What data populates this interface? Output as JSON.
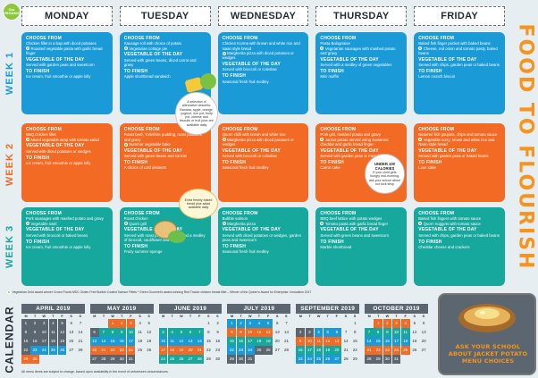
{
  "title": "FOOD TO FLOURISH",
  "badge": "Our ORGANIC",
  "days": [
    "MONDAY",
    "TUESDAY",
    "WEDNESDAY",
    "THURSDAY",
    "FRIDAY"
  ],
  "labels": {
    "choose": "CHOOSE FROM",
    "veg": "VEGETABLE OF THE DAY",
    "finish": "TO FINISH"
  },
  "weeks": [
    {
      "label": "WEEK 1",
      "cards": [
        {
          "choose": [
            {
              "t": "Chicken fillet in a bap with diced potatoes",
              "v": false
            },
            {
              "t": "Roasted vegetable pasta with garlic bread finger",
              "v": true
            }
          ],
          "veg": "Served with garden peas and sweetcorn",
          "finish": "Ice cream, fruit smoothie or apple lolly"
        },
        {
          "choose": [
            {
              "t": "Sausage roll with choice of potato",
              "v": false
            },
            {
              "t": "Vegetarian cottage pie",
              "v": true
            }
          ],
          "veg": "Served with green beans, diced carrot and gravy",
          "finish": "Apple shortbread sandwich"
        },
        {
          "choose": [
            {
              "t": "Chicken Korma with brown and white rice and Naan style bread",
              "v": false
            },
            {
              "t": "Margherita pizza with diced potatoes or wedges",
              "v": true
            }
          ],
          "veg": "Served with broccoli or coleslaw",
          "finish": "Seasonal fresh fruit medley"
        },
        {
          "choose": [
            {
              "t": "Pasta Bolognaise",
              "v": false
            },
            {
              "t": "Vegetarian sausages with mashed potato and gravy",
              "v": true
            }
          ],
          "veg": "Served with a medley of green vegetables",
          "finish": "Mini muffin"
        },
        {
          "choose": [
            {
              "t": "Baked fish finger pocket with baked beans",
              "v": false
            },
            {
              "t": "Cheese, red onion and tomato pasty, baked beans",
              "v": true
            }
          ],
          "veg": "Served with chips, garden peas or baked beans",
          "finish": "Lemon crunch biscuit"
        }
      ]
    },
    {
      "label": "WEEK 2",
      "cards": [
        {
          "choose": [
            {
              "t": "BBQ chicken fillet",
              "v": false
            },
            {
              "t": "Mixed vegetable wrap with tomato salad",
              "v": true
            }
          ],
          "veg": "Served with diced potatoes or wedges",
          "finish": "Ice cream, fruit smoothie or apple lolly"
        },
        {
          "choose": [
            {
              "t": "Roast beef, Yorkshire pudding, roast potatoes and gravy",
              "v": false
            },
            {
              "t": "Summer vegetable bake",
              "v": true
            }
          ],
          "veg": "Served with green beans and carrots",
          "finish": "A choice of cold desserts"
        },
        {
          "choose": [
            {
              "t": "Quorn chilli with brown and white rice",
              "v": false
            },
            {
              "t": "Margherita pizza with diced potatoes or wedges",
              "v": true
            }
          ],
          "veg": "Served with broccoli or coleslaw",
          "finish": "Seasonal fresh fruit medley"
        },
        {
          "choose": [
            {
              "t": "Pork grill, mashed potato and gravy",
              "v": false
            },
            {
              "t": "Jacket potato served using Somerset cheddar and garlic bread finger",
              "v": true
            }
          ],
          "veg": "Served with garden peas or mixed salad",
          "finish": "Carrot cake"
        },
        {
          "choose": [
            {
              "t": "Battered fish goujons, chips and tomato sauce",
              "v": false
            },
            {
              "t": "Vegetable curry, brown and white rice and Naan style bread",
              "v": true
            }
          ],
          "veg": "Served with garden peas or baked beans",
          "finish": "Love cake"
        }
      ]
    },
    {
      "label": "WEEK 3",
      "cards": [
        {
          "choose": [
            {
              "t": "Pork sausages with mashed potato and gravy",
              "v": false
            },
            {
              "t": "Vegetable swirl",
              "v": true
            }
          ],
          "veg": "Served with broccoli or baked beans",
          "finish": "Ice cream, fruit smoothie or apple lolly"
        },
        {
          "choose": [
            {
              "t": "Roast chicken",
              "v": false
            },
            {
              "t": "Quorn grill",
              "v": true
            }
          ],
          "veg": "Served with roast potatoes, gravy and a medley of broccoli, cauliflower and carrots",
          "finish": "Fruity summer sponge"
        },
        {
          "choose": [
            {
              "t": "Bubble salmon",
              "v": false
            },
            {
              "t": "Margherita pizza",
              "v": true
            }
          ],
          "veg": "Served with diced potatoes or wedges, garden peas and sweetcorn",
          "finish": "Seasonal fresh fruit medley"
        },
        {
          "choose": [
            {
              "t": "BBQ beef lattice with potato wedges",
              "v": false
            },
            {
              "t": "Tomato pasta with garlic bread finger",
              "v": true
            }
          ],
          "veg": "Served with green beans and sweetcorn",
          "finish": "Marble shortbread"
        },
        {
          "choose": [
            {
              "t": "Baked fish fingers with tomato sauce",
              "v": false
            },
            {
              "t": "Quorn nuggets with tomato sauce",
              "v": true
            }
          ],
          "veg": "Served with chips, garden peas or baked beans",
          "finish": "Cheddar cheese and crackers"
        }
      ]
    }
  ],
  "bubbles": {
    "fruit": "A selection of alternative desserts: Banana, apple, orange, yoghurt, rice pot, fruity pot, cheese and biscuits or fruit juice are available daily",
    "bread": "Extra freshly baked bread plus salad available daily",
    "under_title": "UNDER 100 CALORIES",
    "under_text": "If your child gets hungry mid-morning, ask your school about our tuck shop"
  },
  "legend": "Vegetarian     Gold award winner Crown Foods MSC Gluten Free Bubble Coated Salmon Fillets     * Green Gourmet's award-winning Red Tractor chicken breast fillet – Winner of the Queen's Award for Enterprise: Innovation 2017",
  "calendar_label": "CALENDAR",
  "weekday_letters": [
    "M",
    "T",
    "W",
    "T",
    "F",
    "S",
    "S"
  ],
  "months": [
    {
      "name": "APRIL 2019",
      "cells": [
        [
          "1",
          "hol"
        ],
        [
          "2",
          "hol"
        ],
        [
          "3",
          "hol"
        ],
        [
          "4",
          "hol"
        ],
        [
          "5",
          "hol"
        ],
        [
          "6",
          ""
        ],
        [
          "7",
          ""
        ],
        [
          "8",
          "hol"
        ],
        [
          "9",
          "hol"
        ],
        [
          "10",
          "hol"
        ],
        [
          "11",
          "hol"
        ],
        [
          "12",
          "hol"
        ],
        [
          "13",
          ""
        ],
        [
          "14",
          ""
        ],
        [
          "15",
          "hol"
        ],
        [
          "16",
          "hol"
        ],
        [
          "17",
          "hol"
        ],
        [
          "18",
          "hol"
        ],
        [
          "19",
          "hol"
        ],
        [
          "20",
          ""
        ],
        [
          "21",
          ""
        ],
        [
          "22",
          "hol"
        ],
        [
          "23",
          "w1"
        ],
        [
          "24",
          "w1"
        ],
        [
          "25",
          "w1"
        ],
        [
          "26",
          "w1"
        ],
        [
          "27",
          ""
        ],
        [
          "28",
          ""
        ],
        [
          "29",
          "w2"
        ],
        [
          "30",
          "w2"
        ],
        [
          "",
          ""
        ],
        [
          "",
          ""
        ],
        [
          "",
          ""
        ],
        [
          "",
          ""
        ],
        [
          "",
          ""
        ]
      ]
    },
    {
      "name": "MAY 2019",
      "cells": [
        [
          "",
          ""
        ],
        [
          "",
          ""
        ],
        [
          "1",
          "w2"
        ],
        [
          "2",
          "w2"
        ],
        [
          "3",
          "w2"
        ],
        [
          "4",
          ""
        ],
        [
          "5",
          ""
        ],
        [
          "6",
          "hol"
        ],
        [
          "7",
          "w3"
        ],
        [
          "8",
          "w3"
        ],
        [
          "9",
          "w3"
        ],
        [
          "10",
          "w3"
        ],
        [
          "11",
          ""
        ],
        [
          "12",
          ""
        ],
        [
          "13",
          "w1"
        ],
        [
          "14",
          "w1"
        ],
        [
          "15",
          "w1"
        ],
        [
          "16",
          "w1"
        ],
        [
          "17",
          "w1"
        ],
        [
          "18",
          ""
        ],
        [
          "19",
          ""
        ],
        [
          "20",
          "w2"
        ],
        [
          "21",
          "w2"
        ],
        [
          "22",
          "w2"
        ],
        [
          "23",
          "w2"
        ],
        [
          "24",
          "w2"
        ],
        [
          "25",
          ""
        ],
        [
          "26",
          ""
        ],
        [
          "27",
          "hol"
        ],
        [
          "28",
          "hol"
        ],
        [
          "29",
          "hol"
        ],
        [
          "30",
          "hol"
        ],
        [
          "31",
          "hol"
        ],
        [
          "",
          ""
        ],
        [
          "",
          ""
        ]
      ]
    },
    {
      "name": "JUNE 2019",
      "cells": [
        [
          "",
          ""
        ],
        [
          "",
          ""
        ],
        [
          "",
          ""
        ],
        [
          "",
          ""
        ],
        [
          "",
          ""
        ],
        [
          "1",
          ""
        ],
        [
          "2",
          ""
        ],
        [
          "3",
          "w3"
        ],
        [
          "4",
          "w3"
        ],
        [
          "5",
          "w3"
        ],
        [
          "6",
          "w3"
        ],
        [
          "7",
          "w3"
        ],
        [
          "8",
          ""
        ],
        [
          "9",
          ""
        ],
        [
          "10",
          "w1"
        ],
        [
          "11",
          "w1"
        ],
        [
          "12",
          "w1"
        ],
        [
          "13",
          "w1"
        ],
        [
          "14",
          "w1"
        ],
        [
          "15",
          ""
        ],
        [
          "16",
          ""
        ],
        [
          "17",
          "w2"
        ],
        [
          "18",
          "w2"
        ],
        [
          "19",
          "w2"
        ],
        [
          "20",
          "w2"
        ],
        [
          "21",
          "w2"
        ],
        [
          "22",
          ""
        ],
        [
          "23",
          ""
        ],
        [
          "24",
          "w3"
        ],
        [
          "25",
          "w3"
        ],
        [
          "26",
          "w3"
        ],
        [
          "27",
          "w3"
        ],
        [
          "28",
          "w3"
        ],
        [
          "29",
          ""
        ],
        [
          "30",
          ""
        ]
      ]
    },
    {
      "name": "JULY 2019",
      "cells": [
        [
          "1",
          "w1"
        ],
        [
          "2",
          "w1"
        ],
        [
          "3",
          "w1"
        ],
        [
          "4",
          "w1"
        ],
        [
          "5",
          "w1"
        ],
        [
          "6",
          ""
        ],
        [
          "7",
          ""
        ],
        [
          "8",
          "w2"
        ],
        [
          "9",
          "w2"
        ],
        [
          "10",
          "w2"
        ],
        [
          "11",
          "w2"
        ],
        [
          "12",
          "w2"
        ],
        [
          "13",
          ""
        ],
        [
          "14",
          ""
        ],
        [
          "15",
          "w3"
        ],
        [
          "16",
          "w3"
        ],
        [
          "17",
          "w3"
        ],
        [
          "18",
          "w3"
        ],
        [
          "19",
          "w3"
        ],
        [
          "20",
          ""
        ],
        [
          "21",
          ""
        ],
        [
          "22",
          "w1"
        ],
        [
          "23",
          "w1"
        ],
        [
          "24",
          "w1"
        ],
        [
          "25",
          "hol"
        ],
        [
          "26",
          "hol"
        ],
        [
          "27",
          ""
        ],
        [
          "28",
          ""
        ],
        [
          "29",
          "hol"
        ],
        [
          "30",
          "hol"
        ],
        [
          "31",
          "hol"
        ],
        [
          "",
          ""
        ],
        [
          "",
          ""
        ],
        [
          "",
          ""
        ],
        [
          "",
          ""
        ]
      ]
    },
    {
      "name": "SEPTEMBER 2019",
      "cells": [
        [
          "",
          ""
        ],
        [
          "",
          ""
        ],
        [
          "",
          ""
        ],
        [
          "",
          ""
        ],
        [
          "",
          ""
        ],
        [
          "",
          ""
        ],
        [
          "1",
          ""
        ],
        [
          "2",
          "hol"
        ],
        [
          "3",
          "hol"
        ],
        [
          "4",
          "w1"
        ],
        [
          "5",
          "w1"
        ],
        [
          "6",
          "w1"
        ],
        [
          "7",
          ""
        ],
        [
          "8",
          ""
        ],
        [
          "9",
          "w2"
        ],
        [
          "10",
          "w2"
        ],
        [
          "11",
          "w2"
        ],
        [
          "12",
          "w2"
        ],
        [
          "13",
          "w2"
        ],
        [
          "14",
          ""
        ],
        [
          "15",
          ""
        ],
        [
          "16",
          "w3"
        ],
        [
          "17",
          "w3"
        ],
        [
          "18",
          "w3"
        ],
        [
          "19",
          "w3"
        ],
        [
          "20",
          "w3"
        ],
        [
          "21",
          ""
        ],
        [
          "22",
          ""
        ],
        [
          "23",
          "w1"
        ],
        [
          "24",
          "w1"
        ],
        [
          "25",
          "w1"
        ],
        [
          "26",
          "w1"
        ],
        [
          "27",
          "w1"
        ],
        [
          "28",
          ""
        ],
        [
          "29",
          ""
        ]
      ]
    },
    {
      "name": "OCTOBER 2019",
      "cells": [
        [
          "",
          ""
        ],
        [
          "1",
          "w2"
        ],
        [
          "2",
          "w2"
        ],
        [
          "3",
          "w2"
        ],
        [
          "4",
          "w2"
        ],
        [
          "5",
          ""
        ],
        [
          "6",
          ""
        ],
        [
          "7",
          "w3"
        ],
        [
          "8",
          "w3"
        ],
        [
          "9",
          "w3"
        ],
        [
          "10",
          "w3"
        ],
        [
          "11",
          "w3"
        ],
        [
          "12",
          ""
        ],
        [
          "13",
          ""
        ],
        [
          "14",
          "w1"
        ],
        [
          "15",
          "w1"
        ],
        [
          "16",
          "w1"
        ],
        [
          "17",
          "w1"
        ],
        [
          "18",
          "w1"
        ],
        [
          "19",
          ""
        ],
        [
          "20",
          ""
        ],
        [
          "21",
          "w2"
        ],
        [
          "22",
          "w2"
        ],
        [
          "23",
          "w2"
        ],
        [
          "24",
          "w2"
        ],
        [
          "25",
          "w2"
        ],
        [
          "26",
          ""
        ],
        [
          "27",
          ""
        ],
        [
          "28",
          "hol"
        ],
        [
          "29",
          "hol"
        ],
        [
          "30",
          "hol"
        ],
        [
          "31",
          "hol"
        ],
        [
          "",
          ""
        ],
        [
          "",
          ""
        ],
        [
          "",
          ""
        ]
      ]
    }
  ],
  "potato_text": "ASK YOUR SCHOOL ABOUT JACKET POTATO MENU CHOICES",
  "footnote": "All menu items are subject to change, based upon availability in the event of unforeseen circumstances.",
  "colors": {
    "week1": "#1a9ad6",
    "week2": "#f26a23",
    "week3": "#16a79d",
    "vegetarian": "#8dc63f",
    "title": "#f7941d"
  }
}
